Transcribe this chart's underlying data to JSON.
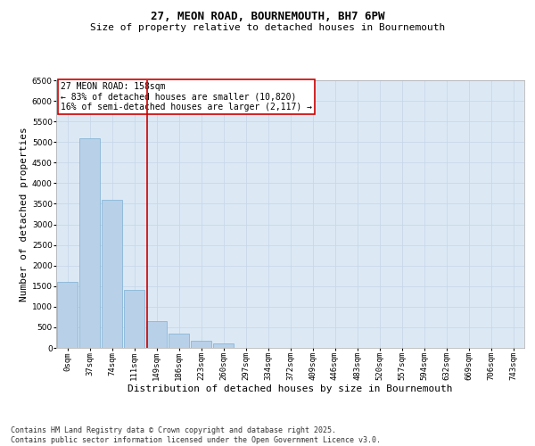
{
  "title_line1": "27, MEON ROAD, BOURNEMOUTH, BH7 6PW",
  "title_line2": "Size of property relative to detached houses in Bournemouth",
  "xlabel": "Distribution of detached houses by size in Bournemouth",
  "ylabel": "Number of detached properties",
  "categories": [
    "0sqm",
    "37sqm",
    "74sqm",
    "111sqm",
    "149sqm",
    "186sqm",
    "223sqm",
    "260sqm",
    "297sqm",
    "334sqm",
    "372sqm",
    "409sqm",
    "446sqm",
    "483sqm",
    "520sqm",
    "557sqm",
    "594sqm",
    "632sqm",
    "669sqm",
    "706sqm",
    "743sqm"
  ],
  "bar_values": [
    1600,
    5100,
    3600,
    1400,
    650,
    350,
    170,
    100,
    0,
    0,
    0,
    0,
    0,
    0,
    0,
    0,
    0,
    0,
    0,
    0,
    0
  ],
  "bar_color": "#b8d0e8",
  "bar_edge_color": "#7aafd4",
  "vline_x_pos": 3.58,
  "vline_color": "#cc0000",
  "ylim_max": 6500,
  "yticks": [
    0,
    500,
    1000,
    1500,
    2000,
    2500,
    3000,
    3500,
    4000,
    4500,
    5000,
    5500,
    6000,
    6500
  ],
  "annotation_text": "27 MEON ROAD: 158sqm\n← 83% of detached houses are smaller (10,820)\n16% of semi-detached houses are larger (2,117) →",
  "annotation_box_facecolor": "#ffffff",
  "annotation_box_edgecolor": "#cc0000",
  "footer_line1": "Contains HM Land Registry data © Crown copyright and database right 2025.",
  "footer_line2": "Contains public sector information licensed under the Open Government Licence v3.0.",
  "grid_color": "#c8d8e8",
  "bg_color": "#dce9f5",
  "title_fontsize": 9,
  "subtitle_fontsize": 8,
  "xlabel_fontsize": 8,
  "ylabel_fontsize": 8,
  "tick_fontsize": 6.5,
  "annot_fontsize": 7,
  "footer_fontsize": 6
}
